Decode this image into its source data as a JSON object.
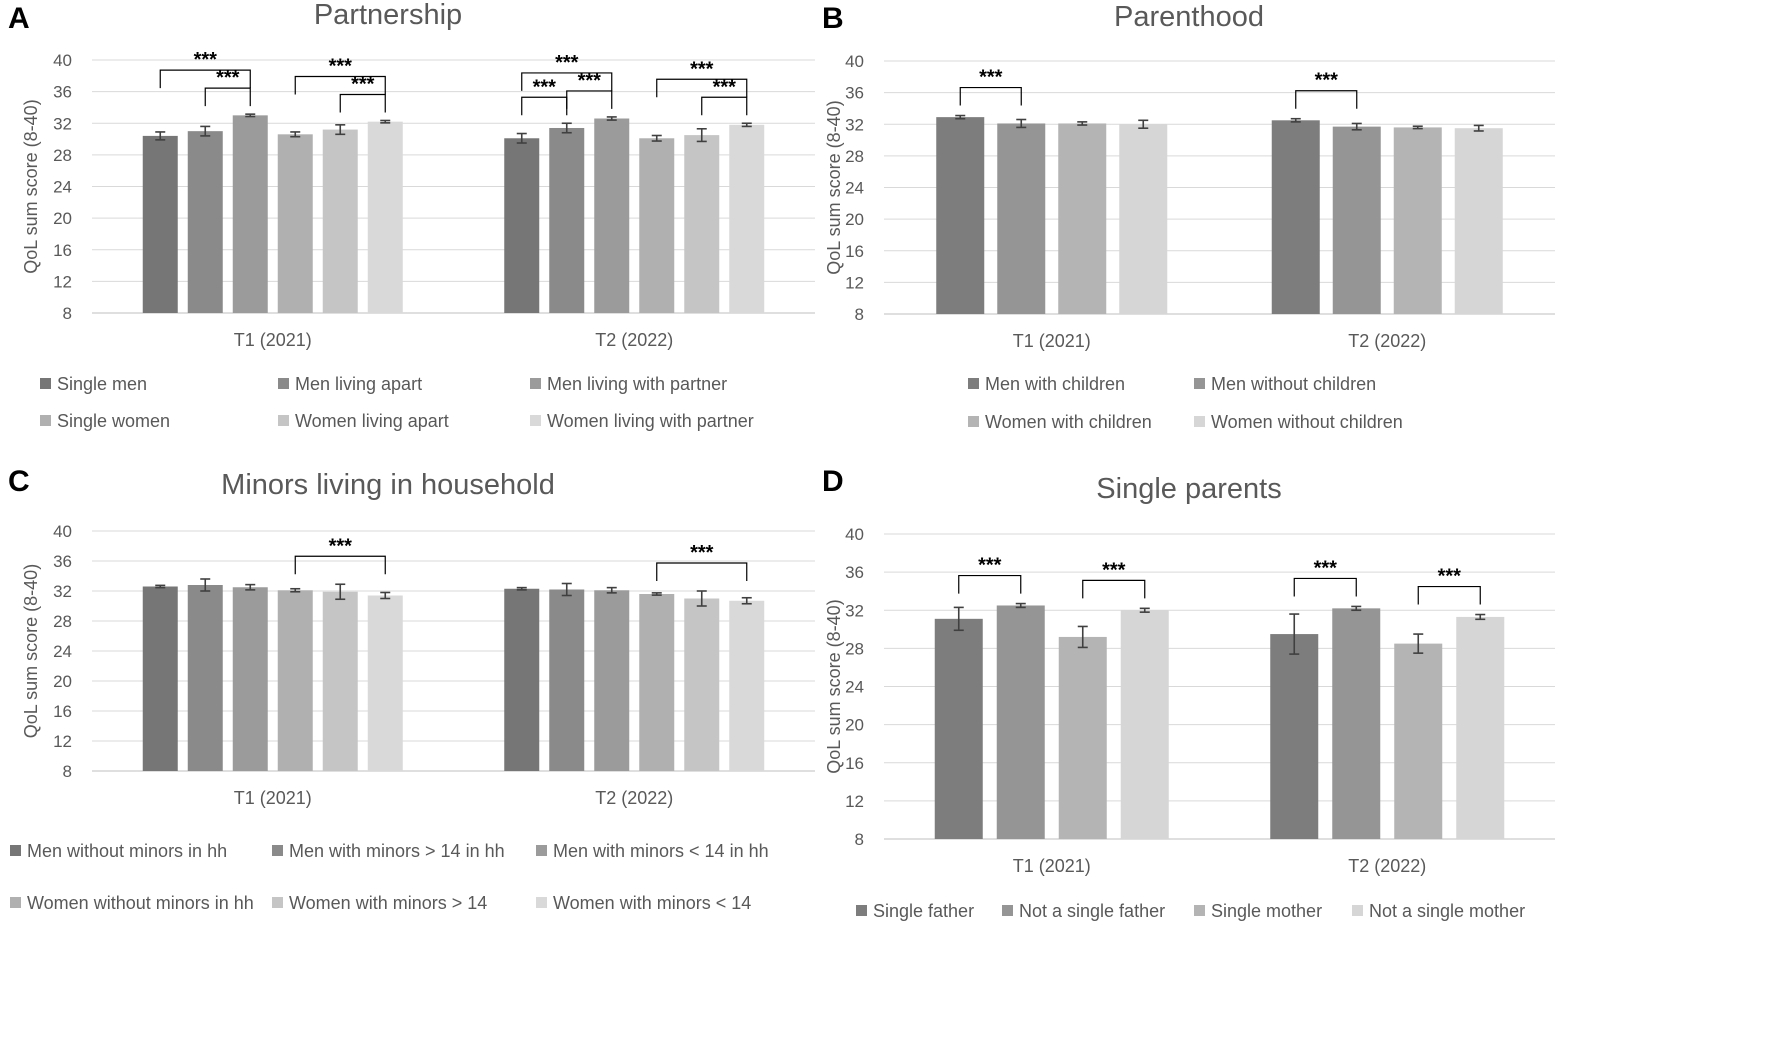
{
  "chart_data": [
    {
      "panel": "A",
      "type": "bar",
      "title": "Partnership",
      "ylabel": "QoL sum score (8-40)",
      "xlabel": "",
      "ylim": [
        8,
        40
      ],
      "yticks": [
        8,
        12,
        16,
        20,
        24,
        28,
        32,
        36,
        40
      ],
      "categories": [
        "T1 (2021)",
        "T2 (2022)"
      ],
      "colors": [
        "#767676",
        "#8a8a8a",
        "#9b9b9b",
        "#b0b0b0",
        "#c5c5c5",
        "#d9d9d9"
      ],
      "series": [
        {
          "name": "Single men",
          "values": [
            30.4,
            30.1
          ],
          "errors": [
            0.5,
            0.6
          ]
        },
        {
          "name": "Men living apart",
          "values": [
            31.0,
            31.4
          ],
          "errors": [
            0.6,
            0.6
          ]
        },
        {
          "name": "Men living with partner",
          "values": [
            33.0,
            32.6
          ],
          "errors": [
            0.15,
            0.2
          ]
        },
        {
          "name": "Single women",
          "values": [
            30.6,
            30.1
          ],
          "errors": [
            0.3,
            0.35
          ]
        },
        {
          "name": "Women living apart",
          "values": [
            31.2,
            30.5
          ],
          "errors": [
            0.6,
            0.8
          ]
        },
        {
          "name": "Women living with partner",
          "values": [
            32.2,
            31.8
          ],
          "errors": [
            0.15,
            0.2
          ]
        }
      ],
      "significance": [
        {
          "category": 0,
          "from": 0,
          "to": 2,
          "level": 0,
          "label": "***"
        },
        {
          "category": 0,
          "from": 1,
          "to": 2,
          "level": 1,
          "label": "***"
        },
        {
          "category": 0,
          "from": 3,
          "to": 5,
          "level": 0,
          "label": "***"
        },
        {
          "category": 0,
          "from": 4,
          "to": 5,
          "level": 1,
          "label": "***"
        },
        {
          "category": 1,
          "from": 0,
          "to": 2,
          "level": 0,
          "label": "***"
        },
        {
          "category": 1,
          "from": 0,
          "to": 1,
          "level": 1,
          "label": "***"
        },
        {
          "category": 1,
          "from": 1,
          "to": 2,
          "level": 1,
          "label": "***"
        },
        {
          "category": 1,
          "from": 3,
          "to": 5,
          "level": 0,
          "label": "***"
        },
        {
          "category": 1,
          "from": 4,
          "to": 5,
          "level": 1,
          "label": "***"
        }
      ],
      "legend_columns": 3
    },
    {
      "panel": "B",
      "type": "bar",
      "title": "Parenthood",
      "ylabel": "QoL sum score (8-40)",
      "xlabel": "",
      "ylim": [
        8,
        40
      ],
      "yticks": [
        8,
        12,
        16,
        20,
        24,
        28,
        32,
        36,
        40
      ],
      "categories": [
        "T1 (2021)",
        "T2 (2022)"
      ],
      "colors": [
        "#7d7d7d",
        "#959595",
        "#b4b4b4",
        "#d6d6d6"
      ],
      "series": [
        {
          "name": "Men with children",
          "values": [
            32.9,
            32.5
          ],
          "errors": [
            0.2,
            0.2
          ]
        },
        {
          "name": "Men without children",
          "values": [
            32.1,
            31.7
          ],
          "errors": [
            0.5,
            0.4
          ]
        },
        {
          "name": "Women with children",
          "values": [
            32.1,
            31.6
          ],
          "errors": [
            0.2,
            0.15
          ]
        },
        {
          "name": "Women without children",
          "values": [
            32.0,
            31.5
          ],
          "errors": [
            0.5,
            0.35
          ]
        }
      ],
      "significance": [
        {
          "category": 0,
          "from": 0,
          "to": 1,
          "level": 0,
          "label": "***"
        },
        {
          "category": 1,
          "from": 0,
          "to": 1,
          "level": 0,
          "label": "***"
        }
      ],
      "legend_columns": 2
    },
    {
      "panel": "C",
      "type": "bar",
      "title": "Minors living in household",
      "ylabel": "QoL sum score (8-40)",
      "xlabel": "",
      "ylim": [
        8,
        40
      ],
      "yticks": [
        8,
        12,
        16,
        20,
        24,
        28,
        32,
        36,
        40
      ],
      "categories": [
        "T1 (2021)",
        "T2 (2022)"
      ],
      "colors": [
        "#767676",
        "#8a8a8a",
        "#9b9b9b",
        "#b0b0b0",
        "#c5c5c5",
        "#d9d9d9"
      ],
      "series": [
        {
          "name": "Men without minors in hh",
          "values": [
            32.6,
            32.3
          ],
          "errors": [
            0.15,
            0.15
          ]
        },
        {
          "name": "Men with minors > 14 in hh",
          "values": [
            32.8,
            32.2
          ],
          "errors": [
            0.8,
            0.8
          ]
        },
        {
          "name": "Men with minors < 14 in hh",
          "values": [
            32.5,
            32.1
          ],
          "errors": [
            0.35,
            0.35
          ]
        },
        {
          "name": "Women without minors in hh",
          "values": [
            32.1,
            31.6
          ],
          "errors": [
            0.2,
            0.15
          ]
        },
        {
          "name": "Women with minors > 14",
          "values": [
            31.9,
            31.0
          ],
          "errors": [
            1.0,
            1.0
          ]
        },
        {
          "name": "Women with minors < 14",
          "values": [
            31.4,
            30.7
          ],
          "errors": [
            0.4,
            0.4
          ]
        }
      ],
      "significance": [
        {
          "category": 0,
          "from": 3,
          "to": 5,
          "level": 0,
          "label": "***"
        },
        {
          "category": 1,
          "from": 3,
          "to": 5,
          "level": 0,
          "label": "***"
        }
      ],
      "legend_columns": 3
    },
    {
      "panel": "D",
      "type": "bar",
      "title": "Single parents",
      "ylabel": "QoL sum score (8-40)",
      "xlabel": "",
      "ylim": [
        8,
        40
      ],
      "yticks": [
        8,
        12,
        16,
        20,
        24,
        28,
        32,
        36,
        40
      ],
      "categories": [
        "T1 (2021)",
        "T2 (2022)"
      ],
      "colors": [
        "#7d7d7d",
        "#959595",
        "#b4b4b4",
        "#d6d6d6"
      ],
      "series": [
        {
          "name": "Single father",
          "values": [
            31.1,
            29.5
          ],
          "errors": [
            1.2,
            2.1
          ]
        },
        {
          "name": "Not a single father",
          "values": [
            32.5,
            32.2
          ],
          "errors": [
            0.2,
            0.2
          ]
        },
        {
          "name": "Single mother",
          "values": [
            29.2,
            28.5
          ],
          "errors": [
            1.1,
            1.0
          ]
        },
        {
          "name": "Not a single mother",
          "values": [
            32.0,
            31.3
          ],
          "errors": [
            0.2,
            0.25
          ]
        }
      ],
      "significance": [
        {
          "category": 0,
          "from": 0,
          "to": 1,
          "level": 0,
          "label": "***"
        },
        {
          "category": 0,
          "from": 2,
          "to": 3,
          "level": 0,
          "label": "***"
        },
        {
          "category": 1,
          "from": 0,
          "to": 1,
          "level": 0,
          "label": "***"
        },
        {
          "category": 1,
          "from": 2,
          "to": 3,
          "level": 0,
          "label": "***"
        }
      ],
      "legend_columns": 4
    }
  ]
}
